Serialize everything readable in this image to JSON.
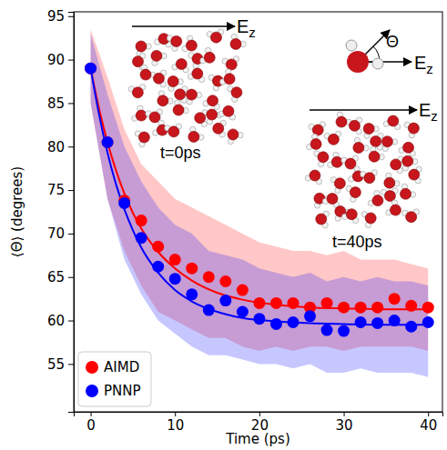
{
  "chart_data": {
    "type": "scatter",
    "x_label": "Time (ps)",
    "y_label": "⟨Θ⟩ (degrees)",
    "xlim": [
      -2,
      41.7
    ],
    "ylim": [
      49.5,
      95.5
    ],
    "xticks": [
      0,
      10,
      20,
      30,
      40
    ],
    "yticks": [
      55,
      60,
      65,
      70,
      75,
      80,
      85,
      90,
      95
    ],
    "legend": "lower left",
    "x": [
      0,
      2,
      4,
      6,
      8,
      10,
      12,
      14,
      16,
      18,
      20,
      22,
      24,
      26,
      28,
      30,
      32,
      34,
      36,
      38,
      40
    ],
    "fit_x": [
      0,
      1,
      2,
      3,
      4,
      5,
      6,
      8,
      10,
      12,
      15,
      18,
      22,
      26,
      30,
      35,
      40
    ],
    "series": [
      {
        "name": "AIMD",
        "color": "#ff0000",
        "marker": "o",
        "line_style": "solid",
        "values": [
          89,
          80.5,
          73.8,
          71.5,
          68.5,
          67,
          66,
          65,
          64.5,
          63.5,
          62,
          62,
          62,
          61.5,
          62,
          61.5,
          61.5,
          61.5,
          62.5,
          61.7,
          61.5
        ],
        "fit": [
          89,
          84.4,
          80.5,
          77.3,
          74.6,
          72.4,
          70.6,
          67.9,
          66.0,
          64.6,
          63.2,
          62.4,
          61.8,
          61.5,
          61.4,
          61.3,
          61.3
        ],
        "band_lower": [
          85,
          74,
          68,
          64,
          61,
          60,
          59,
          58,
          58,
          57,
          56.5,
          57,
          56.5,
          57,
          57,
          56.5,
          57,
          57,
          57,
          57,
          56.5
        ],
        "band_upper": [
          93.5,
          88,
          82,
          78,
          76,
          74,
          73,
          72,
          71,
          70,
          69,
          68.5,
          68,
          68,
          67.5,
          68,
          67,
          67,
          67,
          66.5,
          66
        ]
      },
      {
        "name": "PNNP",
        "color": "#0000ff",
        "marker": "o",
        "line_style": "solid",
        "values": [
          89,
          80.5,
          73.5,
          69.5,
          66.2,
          64.8,
          63,
          61.2,
          62.3,
          61,
          60.2,
          59.6,
          59.8,
          60.5,
          58.9,
          58.8,
          59.8,
          59.7,
          60,
          59.3,
          59.8
        ],
        "fit": [
          89,
          83.7,
          79.3,
          75.7,
          72.8,
          70.4,
          68.4,
          65.5,
          63.5,
          62.2,
          61.0,
          60.3,
          59.9,
          59.7,
          59.6,
          59.5,
          59.5
        ],
        "band_lower": [
          85,
          74,
          67,
          63,
          60,
          58.5,
          57,
          56,
          56,
          55.5,
          55,
          55,
          54.5,
          55,
          54,
          54,
          54.5,
          54,
          54,
          54,
          53.5
        ],
        "band_upper": [
          93,
          86,
          80,
          76,
          73,
          71,
          70,
          68,
          67.5,
          67,
          66,
          65.5,
          65,
          65.5,
          64.5,
          65,
          64.5,
          65,
          64.5,
          64.5,
          64
        ]
      }
    ],
    "annotations": [
      {
        "text": "E",
        "sub": "z"
      },
      {
        "text": "E",
        "sub": "z"
      },
      {
        "text": "E",
        "sub": "z"
      },
      {
        "text": "Θ"
      },
      {
        "text": "t=0ps"
      },
      {
        "text": "t=40ps"
      }
    ]
  }
}
